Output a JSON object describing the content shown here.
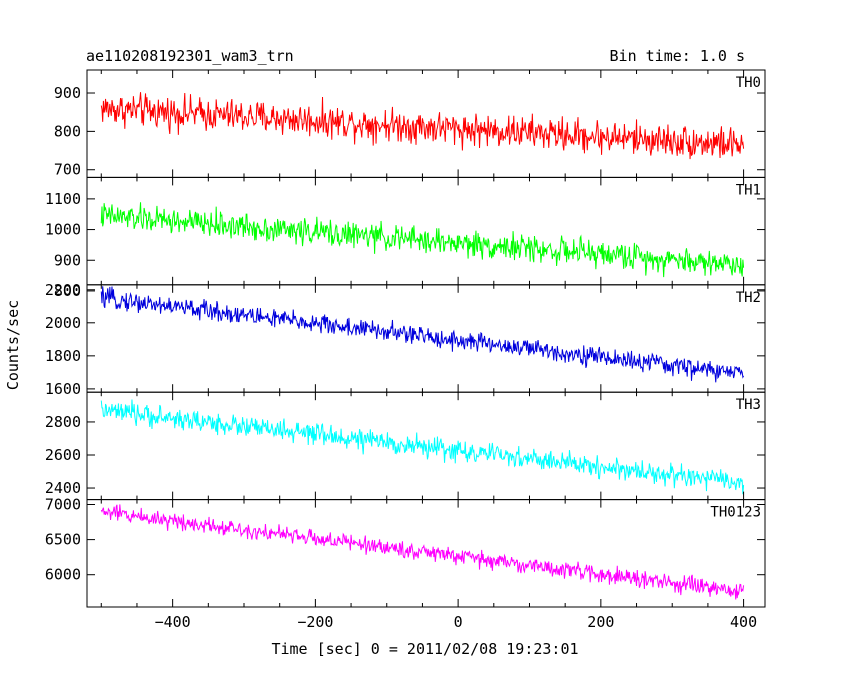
{
  "header": {
    "left_title": "ae110208192301_wam3_trn",
    "right_title": "Bin time: 1.0 s"
  },
  "chart_data": {
    "type": "line",
    "xlabel": "Time [sec] 0 = 2011/02/08 19:23:01",
    "ylabel": "Counts/sec",
    "xlim": [
      -520,
      430
    ],
    "x_start": -500,
    "x_end": 400,
    "x_step": 1,
    "x_ticks": [
      -400,
      -200,
      0,
      200,
      400
    ],
    "x_tick_labels": [
      "−400",
      "−200",
      "0",
      "200",
      "400"
    ],
    "panels": [
      {
        "name": "TH0",
        "color": "#ff0000",
        "ylim": [
          680,
          960
        ],
        "yticks": [
          700,
          800,
          900
        ],
        "start_level": 860,
        "end_level": 765,
        "noise_amplitude": 40
      },
      {
        "name": "TH1",
        "color": "#00ff00",
        "ylim": [
          820,
          1170
        ],
        "yticks": [
          800,
          900,
          1000,
          1100
        ],
        "start_level": 1045,
        "end_level": 885,
        "noise_amplitude": 40
      },
      {
        "name": "TH2",
        "color": "#0000dd",
        "ylim": [
          1580,
          2230
        ],
        "yticks": [
          1600,
          1800,
          2000,
          2200
        ],
        "start_level": 2150,
        "end_level": 1690,
        "noise_amplitude": 55
      },
      {
        "name": "TH3",
        "color": "#00ffff",
        "ylim": [
          2330,
          2980
        ],
        "yticks": [
          2400,
          2600,
          2800
        ],
        "start_level": 2870,
        "end_level": 2430,
        "noise_amplitude": 60
      },
      {
        "name": "TH0123",
        "color": "#ff00ff",
        "ylim": [
          5540,
          7070
        ],
        "yticks": [
          6000,
          6500,
          7000
        ],
        "start_level": 6900,
        "end_level": 5750,
        "noise_amplitude": 110
      }
    ]
  }
}
